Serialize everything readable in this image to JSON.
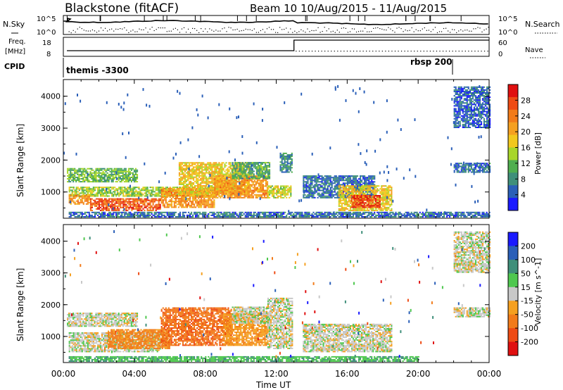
{
  "header": {
    "radar_title": "Blackstone (fitACF)",
    "beam_info": "Beam 10  10/Aug/2015 - 11/Aug/2015"
  },
  "noise_panel": {
    "left_label": "N.Sky",
    "right_label": "N.Search",
    "left_ticks": [
      "10^5",
      "10^0"
    ],
    "right_ticks": [
      "10^5",
      "10^0"
    ]
  },
  "freq_panel": {
    "left_label_top": "Freq.",
    "left_label_unit": "[MHz]",
    "right_label": "Nave",
    "left_ticks": [
      "18",
      "8"
    ],
    "right_ticks": [
      "60",
      "0"
    ]
  },
  "cpid_panel": {
    "label": "CPID",
    "modes": [
      {
        "name": "themis -3300",
        "start_hour": 0,
        "end_hour": 22
      },
      {
        "name": "rbsp 200",
        "start_hour": 22,
        "end_hour": 24
      }
    ]
  },
  "chart_data": [
    {
      "type": "heatmap",
      "name": "power",
      "ylabel": "Slant Range [km]",
      "y_ticks": [
        "1000",
        "2000",
        "3000",
        "4000"
      ],
      "ylim": [
        200,
        4500
      ],
      "xlim_hours": [
        0,
        24
      ],
      "colorbar_label": "Power [dB]",
      "colorbar_ticks": [
        "4",
        "8",
        "12",
        "16",
        "20",
        "24",
        "28"
      ],
      "colorbar_range": [
        0,
        32
      ],
      "colorscale": [
        "#1a1aff",
        "#2a5fb8",
        "#3f8f7a",
        "#4fae4f",
        "#a8d62a",
        "#f2c81e",
        "#f5a020",
        "#f27b1a",
        "#ee4b14",
        "#e01010"
      ],
      "patches": [
        {
          "t0": 0.2,
          "t1": 4.2,
          "r0": 1300,
          "r1": 1750,
          "p": 12
        },
        {
          "t0": 0.3,
          "t1": 8.5,
          "r0": 850,
          "r1": 1150,
          "p": 14
        },
        {
          "t0": 0.3,
          "t1": 1.5,
          "r0": 600,
          "r1": 900,
          "p": 22
        },
        {
          "t0": 1.5,
          "t1": 5.5,
          "r0": 400,
          "r1": 800,
          "p": 26
        },
        {
          "t0": 5.5,
          "t1": 8.5,
          "r0": 500,
          "r1": 1100,
          "p": 22
        },
        {
          "t0": 6.5,
          "t1": 10.5,
          "r0": 900,
          "r1": 1900,
          "p": 18
        },
        {
          "t0": 8.5,
          "t1": 11.5,
          "r0": 800,
          "r1": 1500,
          "p": 22
        },
        {
          "t0": 9.5,
          "t1": 11.6,
          "r0": 1400,
          "r1": 1900,
          "p": 10
        },
        {
          "t0": 11.5,
          "t1": 12.8,
          "r0": 800,
          "r1": 1200,
          "p": 16
        },
        {
          "t0": 12.2,
          "t1": 12.9,
          "r0": 1600,
          "r1": 2200,
          "p": 8
        },
        {
          "t0": 13.5,
          "t1": 17.5,
          "r0": 800,
          "r1": 1500,
          "p": 6
        },
        {
          "t0": 15.5,
          "t1": 18.5,
          "r0": 400,
          "r1": 1200,
          "p": 18
        },
        {
          "t0": 16.2,
          "t1": 17.8,
          "r0": 500,
          "r1": 900,
          "p": 28
        },
        {
          "t0": 22.0,
          "t1": 24.0,
          "r0": 1600,
          "r1": 1900,
          "p": 6
        },
        {
          "t0": 22.0,
          "t1": 24.0,
          "r0": 3000,
          "r1": 4300,
          "p": 5
        },
        {
          "t0": 0.3,
          "t1": 24.0,
          "r0": 200,
          "r1": 350,
          "p": 6
        }
      ]
    },
    {
      "type": "heatmap",
      "name": "velocity",
      "ylabel": "Slant Range [km]",
      "xlabel": "Time UT",
      "x_ticks": [
        "00:00",
        "04:00",
        "08:00",
        "12:00",
        "16:00",
        "20:00",
        "00:00"
      ],
      "y_ticks": [
        "1000",
        "2000",
        "3000",
        "4000"
      ],
      "ylim": [
        200,
        4500
      ],
      "xlim_hours": [
        0,
        24
      ],
      "colorbar_label": "Velocity [m s^-1]",
      "colorbar_ticks": [
        "200",
        "100",
        "50",
        "15",
        "-15",
        "-50",
        "-100",
        "-200"
      ],
      "colorscale": [
        "#1a1aff",
        "#2a5fb8",
        "#3f8f7a",
        "#4fc84f",
        "#c8c8c8",
        "#f5a020",
        "#f27b1a",
        "#ee4b14",
        "#e01010"
      ],
      "patches": [
        {
          "t0": 0.2,
          "t1": 4.2,
          "r0": 1300,
          "r1": 1750,
          "v": 0
        },
        {
          "t0": 0.3,
          "t1": 5.5,
          "r0": 500,
          "r1": 1100,
          "v": 0
        },
        {
          "t0": 2.5,
          "t1": 6.0,
          "r0": 600,
          "r1": 1200,
          "v": -60
        },
        {
          "t0": 5.5,
          "t1": 9.5,
          "r0": 700,
          "r1": 1900,
          "v": -90
        },
        {
          "t0": 9.0,
          "t1": 11.5,
          "r0": 700,
          "r1": 1700,
          "v": -40
        },
        {
          "t0": 9.5,
          "t1": 11.5,
          "r0": 1400,
          "r1": 1900,
          "v": 0
        },
        {
          "t0": 11.5,
          "t1": 12.9,
          "r0": 600,
          "r1": 2200,
          "v": 0
        },
        {
          "t0": 13.5,
          "t1": 18.5,
          "r0": 500,
          "r1": 1400,
          "v": 0
        },
        {
          "t0": 0.3,
          "t1": 20.0,
          "r0": 200,
          "r1": 380,
          "v": 40
        },
        {
          "t0": 22.0,
          "t1": 24.0,
          "r0": 1600,
          "r1": 1900,
          "v": 0
        },
        {
          "t0": 22.0,
          "t1": 24.0,
          "r0": 3000,
          "r1": 4300,
          "v": 0
        }
      ]
    }
  ]
}
